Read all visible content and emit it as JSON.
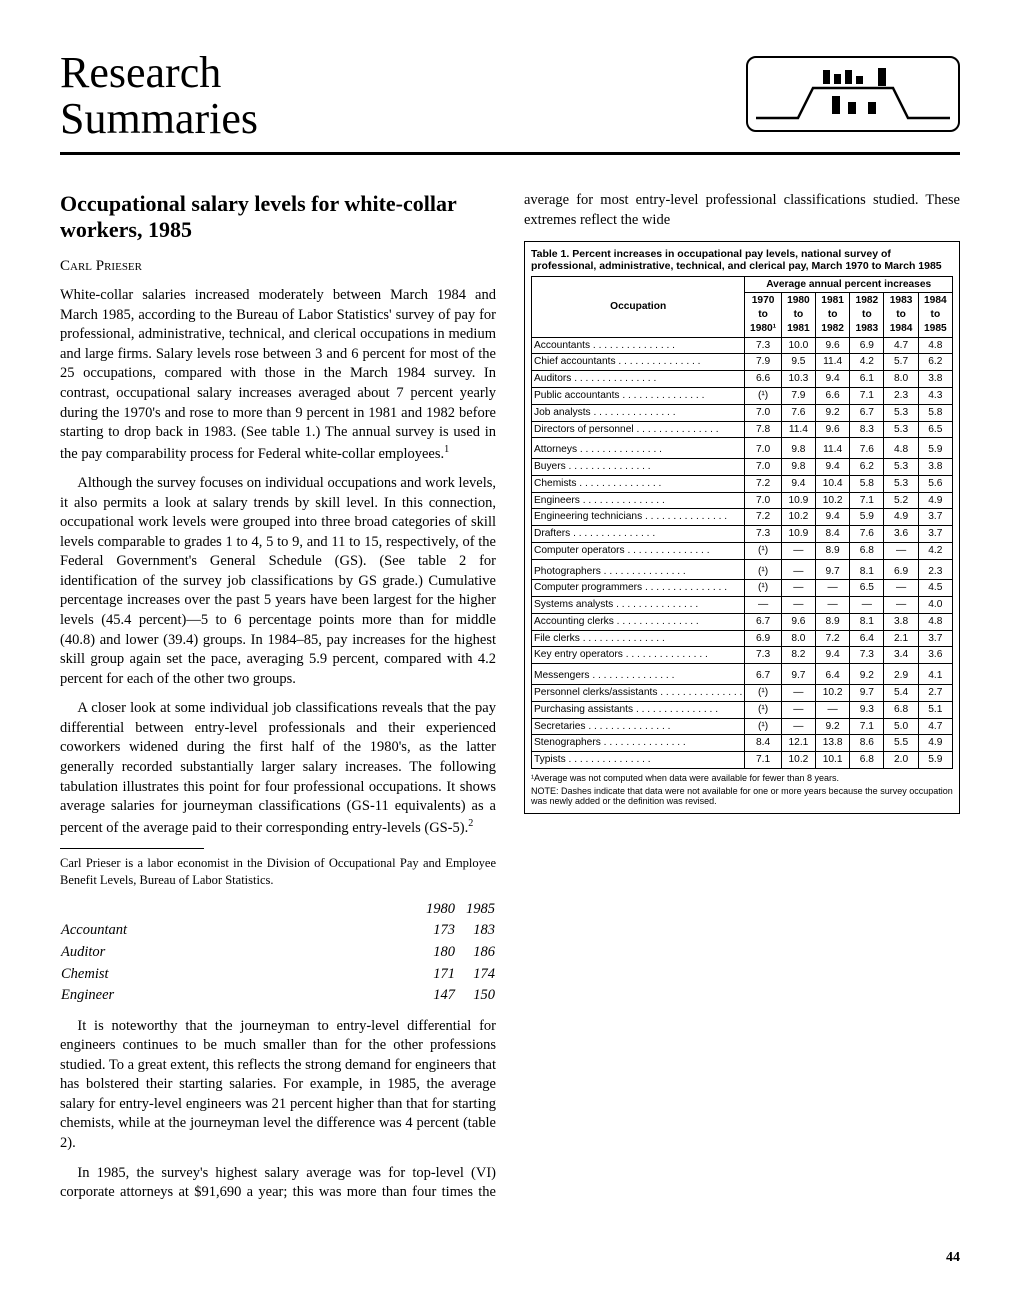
{
  "masthead": {
    "title_line1": "Research",
    "title_line2": "Summaries"
  },
  "article": {
    "title": "Occupational salary levels for white-collar workers, 1985",
    "author": "Carl Prieser",
    "p1": "White-collar salaries increased moderately between March 1984 and March 1985, according to the Bureau of Labor Statistics' survey of pay for professional, administrative, technical, and clerical occupations in medium and large firms. Salary levels rose between 3 and 6 percent for most of the 25 occupations, compared with those in the March 1984 survey. In contrast, occupational salary increases averaged about 7 percent yearly during the 1970's and rose to more than 9 percent in 1981 and 1982 before starting to drop back in 1983. (See table 1.) The annual survey is used in the pay comparability process for Federal white-collar employees.",
    "p2": "Although the survey focuses on individual occupations and work levels, it also permits a look at salary trends by skill level. In this connection, occupational work levels were grouped into three broad categories of skill levels comparable to grades 1 to 4, 5 to 9, and 11 to 15, respectively, of the Federal Government's General Schedule (GS). (See table 2 for identification of the survey job classifications by GS grade.) Cumulative percentage increases over the past 5 years have been largest for the higher levels (45.4 percent)—5 to 6 percentage points more than for middle (40.8) and lower (39.4) groups. In 1984–85, pay increases for the highest skill group again set the pace, averaging 5.9 percent, compared with 4.2 percent for each of the other two groups.",
    "p3": "A closer look at some individual job classifications reveals that the pay differential between entry-level professionals and their experienced coworkers widened during the first half of the 1980's, as the latter generally recorded substantially larger salary increases. The following tabulation illustrates this point for four professional occupations. It shows average salaries for journeyman classifications (GS-11 equivalents) as a percent of the average paid to their corresponding entry-levels (GS-5).",
    "p4": "It is noteworthy that the journeyman to entry-level differential for engineers continues to be much smaller than for the other professions studied. To a great extent, this reflects the strong demand for engineers that has bolstered their starting salaries. For example, in 1985, the average salary for entry-level engineers was 21 percent higher than that for starting chemists, while at the journeyman level the difference was 4 percent (table 2).",
    "p5": "In 1985, the survey's highest salary average was for top-level (VI) corporate attorneys at $91,690 a year; this was more than four times the average for most entry-level professional classifications studied. These extremes reflect the wide",
    "footnote": "Carl Prieser is a labor economist in the Division of Occupational Pay and Employee Benefit Levels, Bureau of Labor Statistics."
  },
  "salary_tab": {
    "head_1980": "1980",
    "head_1985": "1985",
    "rows": [
      {
        "label": "Accountant",
        "y80": "173",
        "y85": "183"
      },
      {
        "label": "Auditor",
        "y80": "180",
        "y85": "186"
      },
      {
        "label": "Chemist",
        "y80": "171",
        "y85": "174"
      },
      {
        "label": "Engineer",
        "y80": "147",
        "y85": "150"
      }
    ]
  },
  "table1": {
    "caption": "Table 1.  Percent increases in occupational pay levels, national survey of professional, administrative, technical, and clerical pay, March 1970 to March 1985",
    "spanner": "Average annual percent increases",
    "col_occ": "Occupation",
    "cols": [
      "1970 to 1980¹",
      "1980 to 1981",
      "1981 to 1982",
      "1982 to 1983",
      "1983 to 1984",
      "1984 to 1985"
    ],
    "groups": [
      [
        {
          "occ": "Accountants",
          "v": [
            "7.3",
            "10.0",
            "9.6",
            "6.9",
            "4.7",
            "4.8"
          ]
        },
        {
          "occ": "Chief accountants",
          "v": [
            "7.9",
            "9.5",
            "11.4",
            "4.2",
            "5.7",
            "6.2"
          ]
        },
        {
          "occ": "Auditors",
          "v": [
            "6.6",
            "10.3",
            "9.4",
            "6.1",
            "8.0",
            "3.8"
          ]
        },
        {
          "occ": "Public accountants",
          "v": [
            "(¹)",
            "7.9",
            "6.6",
            "7.1",
            "2.3",
            "4.3"
          ]
        },
        {
          "occ": "Job analysts",
          "v": [
            "7.0",
            "7.6",
            "9.2",
            "6.7",
            "5.3",
            "5.8"
          ]
        },
        {
          "occ": "Directors of personnel",
          "v": [
            "7.8",
            "11.4",
            "9.6",
            "8.3",
            "5.3",
            "6.5"
          ]
        }
      ],
      [
        {
          "occ": "Attorneys",
          "v": [
            "7.0",
            "9.8",
            "11.4",
            "7.6",
            "4.8",
            "5.9"
          ]
        },
        {
          "occ": "Buyers",
          "v": [
            "7.0",
            "9.8",
            "9.4",
            "6.2",
            "5.3",
            "3.8"
          ]
        },
        {
          "occ": "Chemists",
          "v": [
            "7.2",
            "9.4",
            "10.4",
            "5.8",
            "5.3",
            "5.6"
          ]
        },
        {
          "occ": "Engineers",
          "v": [
            "7.0",
            "10.9",
            "10.2",
            "7.1",
            "5.2",
            "4.9"
          ]
        },
        {
          "occ": "Engineering technicians",
          "v": [
            "7.2",
            "10.2",
            "9.4",
            "5.9",
            "4.9",
            "3.7"
          ]
        },
        {
          "occ": "Drafters",
          "v": [
            "7.3",
            "10.9",
            "8.4",
            "7.6",
            "3.6",
            "3.7"
          ]
        },
        {
          "occ": "Computer operators",
          "v": [
            "(¹)",
            "—",
            "8.9",
            "6.8",
            "—",
            "4.2"
          ]
        }
      ],
      [
        {
          "occ": "Photographers",
          "v": [
            "(¹)",
            "—",
            "9.7",
            "8.1",
            "6.9",
            "2.3"
          ]
        },
        {
          "occ": "Computer programmers",
          "v": [
            "(¹)",
            "—",
            "—",
            "6.5",
            "—",
            "4.5"
          ]
        },
        {
          "occ": "Systems analysts",
          "v": [
            "—",
            "—",
            "—",
            "—",
            "—",
            "4.0"
          ]
        },
        {
          "occ": "Accounting clerks",
          "v": [
            "6.7",
            "9.6",
            "8.9",
            "8.1",
            "3.8",
            "4.8"
          ]
        },
        {
          "occ": "File clerks",
          "v": [
            "6.9",
            "8.0",
            "7.2",
            "6.4",
            "2.1",
            "3.7"
          ]
        },
        {
          "occ": "Key entry operators",
          "v": [
            "7.3",
            "8.2",
            "9.4",
            "7.3",
            "3.4",
            "3.6"
          ]
        }
      ],
      [
        {
          "occ": "Messengers",
          "v": [
            "6.7",
            "9.7",
            "6.4",
            "9.2",
            "2.9",
            "4.1"
          ]
        },
        {
          "occ": "Personnel clerks/assistants",
          "v": [
            "(¹)",
            "—",
            "10.2",
            "9.7",
            "5.4",
            "2.7"
          ]
        },
        {
          "occ": "Purchasing assistants",
          "v": [
            "(¹)",
            "—",
            "—",
            "9.3",
            "6.8",
            "5.1"
          ]
        },
        {
          "occ": "Secretaries",
          "v": [
            "(¹)",
            "—",
            "9.2",
            "7.1",
            "5.0",
            "4.7"
          ]
        },
        {
          "occ": "Stenographers",
          "v": [
            "8.4",
            "12.1",
            "13.8",
            "8.6",
            "5.5",
            "4.9"
          ]
        },
        {
          "occ": "Typists",
          "v": [
            "7.1",
            "10.2",
            "10.1",
            "6.8",
            "2.0",
            "5.9"
          ]
        }
      ]
    ],
    "foot1": "¹Average was not computed when data were available for fewer than 8 years.",
    "foot2": "NOTE:  Dashes indicate that data were not available for one or more years because the survey occupation was newly added or the definition was revised."
  },
  "page_number": "44"
}
